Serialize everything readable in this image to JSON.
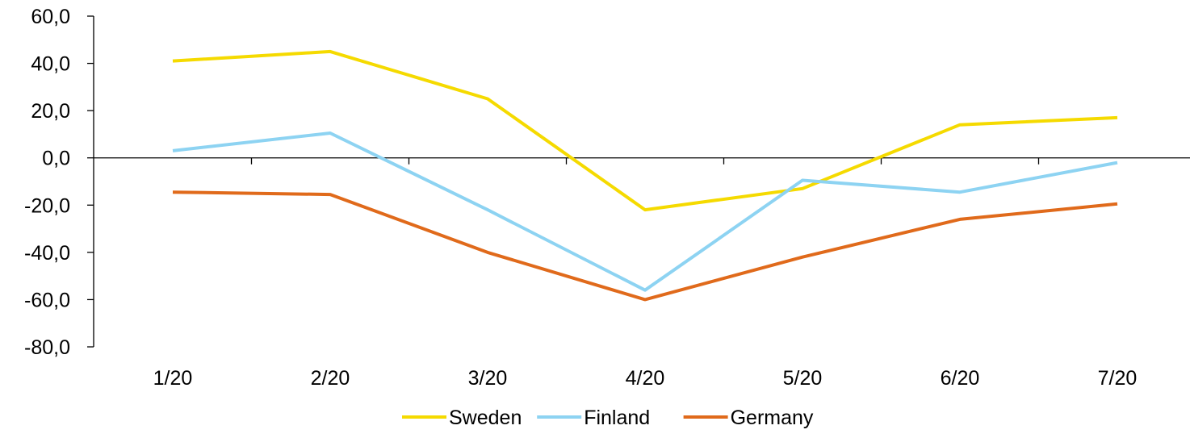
{
  "chart_data": {
    "type": "line",
    "title": "",
    "xlabel": "",
    "ylabel": "",
    "categories": [
      "1/20",
      "2/20",
      "3/20",
      "4/20",
      "5/20",
      "6/20",
      "7/20"
    ],
    "ylim": [
      -80,
      60
    ],
    "yticks": [
      60,
      40,
      20,
      0,
      -20,
      -40,
      -60,
      -80
    ],
    "ytick_labels": [
      "60,0",
      "40,0",
      "20,0",
      "0,0",
      "-20,0",
      "-40,0",
      "-60,0",
      "-80,0"
    ],
    "grid": false,
    "legend": "bottom",
    "series": [
      {
        "name": "Sweden",
        "color": "#F5DA00",
        "values": [
          41,
          45,
          25,
          -22,
          -13,
          14,
          17
        ]
      },
      {
        "name": "Finland",
        "color": "#8DD3F2",
        "values": [
          3,
          10.5,
          -22,
          -56,
          -9.5,
          -14.5,
          -2
        ]
      },
      {
        "name": "Germany",
        "color": "#E06A1B",
        "values": [
          -14.5,
          -15.5,
          -40,
          -60,
          -42,
          -26,
          -19.5
        ]
      }
    ]
  }
}
